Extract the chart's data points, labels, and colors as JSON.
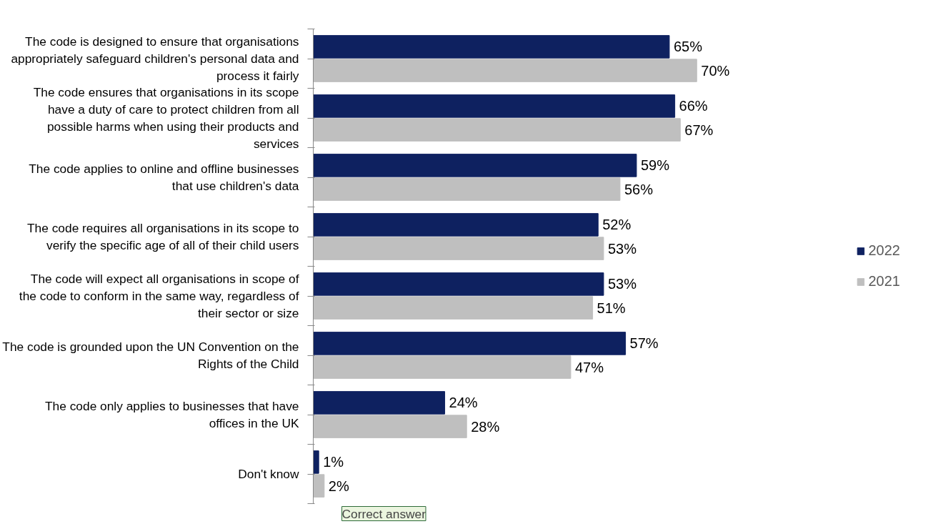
{
  "chart_data": {
    "type": "bar",
    "orientation": "horizontal",
    "categories": [
      "The code is designed to ensure that organisations appropriately safeguard children's personal data and process it fairly",
      "The code ensures that organisations in its scope have a duty of care to protect children from all possible harms when using their products and services",
      "The code applies to online and offline businesses that use children's data",
      "The code requires all organisations in its scope to verify the specific age of all of their child users",
      "The code will expect all organisations in scope of the code to conform in the same way, regardless of their sector or size",
      "The code is grounded upon the UN Convention on the Rights of the Child",
      "The code only applies to businesses that have offices in the UK",
      "Don't know"
    ],
    "series": [
      {
        "name": "2022",
        "color": "#0e2160",
        "values": [
          65,
          66,
          59,
          52,
          53,
          57,
          24,
          1
        ],
        "value_labels": [
          "65%",
          "66%",
          "59%",
          "52%",
          "53%",
          "57%",
          "24%",
          "1%"
        ]
      },
      {
        "name": "2021",
        "color": "#bfbfbf",
        "values": [
          70,
          67,
          56,
          53,
          51,
          47,
          28,
          2
        ],
        "value_labels": [
          "70%",
          "67%",
          "56%",
          "53%",
          "51%",
          "47%",
          "28%",
          "2%"
        ]
      }
    ],
    "tick_labels": "y",
    "grid": false,
    "legend": "right",
    "annotations": [
      "Correct answer"
    ]
  }
}
